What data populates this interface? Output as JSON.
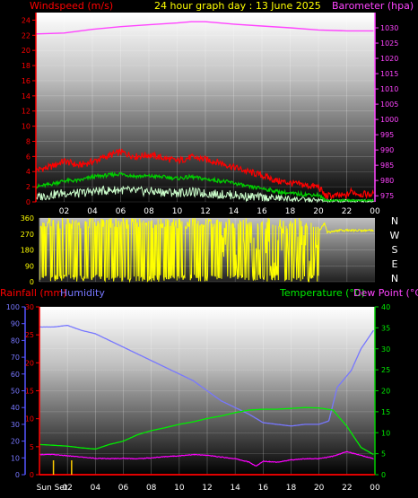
{
  "header": {
    "left_label": "Windspeed (m/s)",
    "title": "24 hour graph day : 13 June 2025",
    "right_label": "Barometer (hpa)"
  },
  "colors": {
    "wind_gust": "#ff0000",
    "wind_avg": "#00cc00",
    "wind_min": "#ccffcc",
    "barometer": "#ff44ff",
    "direction": "#ffff00",
    "rain": "#ff0000",
    "humidity": "#7777ff",
    "temperature": "#00ee00",
    "dewpoint": "#ff00ff",
    "humidity_axis": "#5555ff",
    "temp_axis": "#00cc00"
  },
  "chart_data": [
    {
      "type": "line",
      "title": "24 hour graph day : 13 June 2025",
      "ylabel": "Windspeed (m/s)",
      "y2label": "Barometer (hpa)",
      "ylim": [
        0,
        25
      ],
      "y2lim": [
        973,
        1035
      ],
      "y_ticks": [
        "0",
        "2",
        "4",
        "6",
        "8",
        "10",
        "12",
        "14",
        "16",
        "18",
        "20",
        "22",
        "24"
      ],
      "y2_ticks": [
        "975",
        "980",
        "985",
        "990",
        "995",
        "1000",
        "1005",
        "1010",
        "1015",
        "1020",
        "1025",
        "1030"
      ],
      "x_ticks": [
        "02",
        "04",
        "06",
        "08",
        "10",
        "12",
        "14",
        "16",
        "18",
        "20",
        "22",
        "00"
      ],
      "grid": true,
      "series": [
        {
          "name": "",
          "kind": "wind_gust",
          "points": [
            [
              0,
              4.2
            ],
            [
              1,
              4.6
            ],
            [
              2,
              5.4
            ],
            [
              3,
              4.8
            ],
            [
              4,
              5.3
            ],
            [
              5,
              6.0
            ],
            [
              6,
              6.6
            ],
            [
              7,
              6.0
            ],
            [
              8,
              6.2
            ],
            [
              9,
              5.8
            ],
            [
              10,
              5.4
            ],
            [
              11,
              5.9
            ],
            [
              12,
              5.6
            ],
            [
              13,
              5.2
            ],
            [
              14,
              4.6
            ],
            [
              15,
              4.0
            ],
            [
              16,
              3.5
            ],
            [
              17,
              2.8
            ],
            [
              18,
              2.5
            ],
            [
              19,
              2.2
            ],
            [
              20,
              2.0
            ],
            [
              20.5,
              0.8
            ],
            [
              22,
              0.8
            ],
            [
              22.3,
              1.4
            ],
            [
              23,
              1.0
            ],
            [
              23.9,
              1.0
            ]
          ]
        },
        {
          "name": "",
          "kind": "wind_avg",
          "points": [
            [
              0,
              2.0
            ],
            [
              1,
              2.3
            ],
            [
              2,
              2.8
            ],
            [
              3,
              2.8
            ],
            [
              4,
              3.3
            ],
            [
              5,
              3.5
            ],
            [
              6,
              3.7
            ],
            [
              7,
              3.4
            ],
            [
              8,
              3.4
            ],
            [
              9,
              3.3
            ],
            [
              10,
              3.1
            ],
            [
              11,
              3.3
            ],
            [
              12,
              3.0
            ],
            [
              13,
              2.8
            ],
            [
              14,
              2.5
            ],
            [
              15,
              2.0
            ],
            [
              16,
              1.8
            ],
            [
              17,
              1.4
            ],
            [
              18,
              1.1
            ],
            [
              19,
              1.0
            ],
            [
              20,
              0.9
            ],
            [
              20.5,
              0.2
            ],
            [
              23.9,
              0.2
            ]
          ]
        },
        {
          "name": "",
          "kind": "wind_min",
          "points": [
            [
              0,
              0.6
            ],
            [
              1,
              0.9
            ],
            [
              2,
              1.2
            ],
            [
              3,
              1.1
            ],
            [
              4,
              1.4
            ],
            [
              5,
              1.5
            ],
            [
              6,
              1.6
            ],
            [
              7,
              1.4
            ],
            [
              8,
              1.4
            ],
            [
              9,
              1.3
            ],
            [
              10,
              1.2
            ],
            [
              11,
              1.3
            ],
            [
              12,
              1.1
            ],
            [
              13,
              1.0
            ],
            [
              14,
              0.9
            ],
            [
              15,
              0.7
            ],
            [
              16,
              0.6
            ],
            [
              17,
              0.5
            ],
            [
              18,
              0.4
            ],
            [
              19,
              0.3
            ],
            [
              20,
              0.2
            ],
            [
              20.5,
              0.1
            ],
            [
              23.9,
              0.1
            ]
          ]
        },
        {
          "name": "",
          "kind": "barometer",
          "points": [
            [
              0,
              1028.0
            ],
            [
              2,
              1028.3
            ],
            [
              4,
              1029.5
            ],
            [
              6,
              1030.4
            ],
            [
              8,
              1031.0
            ],
            [
              10,
              1031.6
            ],
            [
              11,
              1032.0
            ],
            [
              12,
              1032.0
            ],
            [
              14,
              1031.2
            ],
            [
              16,
              1030.6
            ],
            [
              18,
              1030.0
            ],
            [
              20,
              1029.3
            ],
            [
              22,
              1029.0
            ],
            [
              23.9,
              1029.0
            ]
          ]
        }
      ]
    },
    {
      "type": "line",
      "ylabel": "",
      "ylim": [
        0,
        360
      ],
      "y_ticks": [
        "0",
        "90",
        "180",
        "270",
        "360"
      ],
      "compass_labels": [
        "N",
        "W",
        "S",
        "E",
        "N"
      ],
      "x_ticks": [
        "02",
        "04",
        "06",
        "08",
        "10",
        "12",
        "14",
        "16",
        "18",
        "20",
        "22",
        "00"
      ],
      "series": [
        {
          "name": "",
          "kind": "direction",
          "note_values": [
            [
              0,
              340
            ],
            [
              0.4,
              20
            ],
            [
              0.8,
              330
            ],
            [
              1.2,
              15
            ],
            [
              1.6,
              345
            ],
            [
              2.2,
              10
            ],
            [
              2.8,
              300
            ],
            [
              3.4,
              30
            ],
            [
              4.0,
              340
            ],
            [
              4.6,
              20
            ],
            [
              5.2,
              320
            ],
            [
              5.8,
              10
            ],
            [
              6.4,
              335
            ],
            [
              7.0,
              25
            ],
            [
              7.6,
              350
            ],
            [
              8.2,
              15
            ],
            [
              8.8,
              330
            ],
            [
              9.4,
              5
            ],
            [
              10.0,
              340
            ],
            [
              10.6,
              30
            ],
            [
              11.2,
              345
            ],
            [
              11.8,
              10
            ],
            [
              12.4,
              300
            ],
            [
              13.0,
              60
            ],
            [
              13.6,
              320
            ],
            [
              14.2,
              90
            ],
            [
              14.8,
              310
            ],
            [
              15.4,
              120
            ],
            [
              16.0,
              300
            ],
            [
              16.4,
              30
            ],
            [
              16.8,
              280
            ],
            [
              17.4,
              40
            ],
            [
              18.0,
              290
            ],
            [
              18.6,
              80
            ],
            [
              19.2,
              270
            ],
            [
              19.8,
              30
            ],
            [
              20.0,
              290
            ],
            [
              20.4,
              330
            ],
            [
              20.6,
              280
            ],
            [
              21.5,
              290
            ],
            [
              22.5,
              290
            ],
            [
              23.9,
              290
            ]
          ]
        }
      ]
    },
    {
      "type": "line",
      "ylabel": "Rainfall (mm)",
      "ylabel2": "Humidity",
      "y2label": "Temperature (°C)",
      "y2label2": "Dew Point (°C)",
      "humidity_lim": [
        0,
        100
      ],
      "rain_lim": [
        0,
        30
      ],
      "temp_lim": [
        0,
        40
      ],
      "humidity_ticks": [
        "0",
        "10",
        "20",
        "30",
        "40",
        "50",
        "60",
        "70",
        "80",
        "90",
        "100"
      ],
      "rain_ticks": [
        "0",
        "5",
        "10",
        "15",
        "20",
        "25",
        "30"
      ],
      "temp_ticks": [
        "0",
        "5",
        "10",
        "15",
        "20",
        "25",
        "30",
        "35",
        "40"
      ],
      "x_ticks": [
        "Sun Set",
        "02",
        "04",
        "06",
        "08",
        "10",
        "12",
        "14",
        "16",
        "18",
        "20",
        "22",
        "00"
      ],
      "grid": true,
      "series": [
        {
          "name": "Humidity",
          "kind": "humidity",
          "points": [
            [
              0,
              88
            ],
            [
              1,
              88
            ],
            [
              2,
              89
            ],
            [
              3,
              86
            ],
            [
              4,
              84
            ],
            [
              5,
              80
            ],
            [
              6,
              76
            ],
            [
              7,
              72
            ],
            [
              8,
              68
            ],
            [
              9,
              64
            ],
            [
              10,
              60
            ],
            [
              11,
              56
            ],
            [
              12,
              50
            ],
            [
              13,
              44
            ],
            [
              14,
              40
            ],
            [
              15,
              36
            ],
            [
              16,
              31
            ],
            [
              17,
              30
            ],
            [
              18,
              29
            ],
            [
              19,
              30
            ],
            [
              20,
              30
            ],
            [
              20.7,
              32
            ],
            [
              21.3,
              52
            ],
            [
              22.3,
              62
            ],
            [
              23,
              75
            ],
            [
              23.9,
              86
            ]
          ]
        },
        {
          "name": "Temperature (°C)",
          "kind": "temperature",
          "points": [
            [
              0,
              7.2
            ],
            [
              1,
              7.0
            ],
            [
              2,
              6.8
            ],
            [
              3,
              6.4
            ],
            [
              4,
              6.1
            ],
            [
              5,
              7.2
            ],
            [
              6,
              8.0
            ],
            [
              7,
              9.5
            ],
            [
              8,
              10.5
            ],
            [
              9,
              11.2
            ],
            [
              10,
              12.0
            ],
            [
              11,
              12.6
            ],
            [
              12,
              13.4
            ],
            [
              13,
              14.0
            ],
            [
              14,
              14.8
            ],
            [
              15,
              15.4
            ],
            [
              16,
              15.6
            ],
            [
              17,
              15.6
            ],
            [
              18,
              15.8
            ],
            [
              19,
              16.0
            ],
            [
              20,
              15.9
            ],
            [
              21,
              15.4
            ],
            [
              22,
              11.5
            ],
            [
              23,
              6.5
            ],
            [
              23.9,
              4.8
            ]
          ]
        },
        {
          "name": "Dew Point (°C)",
          "kind": "dewpoint",
          "points": [
            [
              0,
              4.8
            ],
            [
              1,
              4.8
            ],
            [
              2,
              4.5
            ],
            [
              3,
              4.2
            ],
            [
              4,
              3.9
            ],
            [
              5,
              3.8
            ],
            [
              6,
              3.9
            ],
            [
              7,
              3.8
            ],
            [
              8,
              4.0
            ],
            [
              9,
              4.3
            ],
            [
              10,
              4.5
            ],
            [
              11,
              4.8
            ],
            [
              12,
              4.6
            ],
            [
              13,
              4.2
            ],
            [
              14,
              3.8
            ],
            [
              15,
              3.0
            ],
            [
              15.5,
              2.0
            ],
            [
              16,
              3.2
            ],
            [
              17,
              3.0
            ],
            [
              18,
              3.5
            ],
            [
              19,
              3.8
            ],
            [
              20,
              3.8
            ],
            [
              21,
              4.4
            ],
            [
              22,
              5.5
            ],
            [
              23,
              4.6
            ],
            [
              23.9,
              3.8
            ]
          ]
        },
        {
          "name": "Rainfall (mm)",
          "kind": "rain",
          "points": [
            [
              0,
              0
            ],
            [
              23.9,
              0
            ]
          ]
        }
      ]
    }
  ]
}
